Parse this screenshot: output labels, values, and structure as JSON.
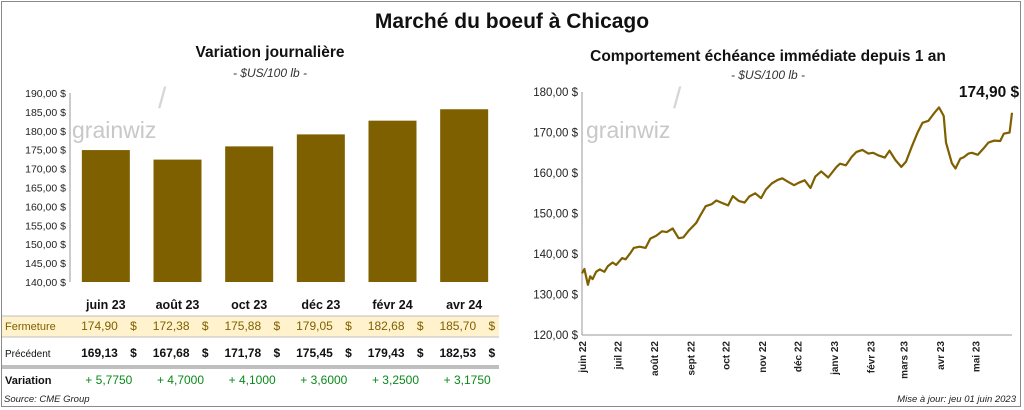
{
  "title": "Marché du boeuf à Chicago",
  "left": {
    "title": "Variation  journalière",
    "unit": "- $US/100 lb -",
    "watermark": "grainwiz",
    "y_ticks": [
      "190,00 $",
      "185,00 $",
      "180,00 $",
      "175,00 $",
      "170,00 $",
      "165,00 $",
      "160,00 $",
      "155,00 $",
      "150,00 $",
      "145,00 $",
      "140,00 $"
    ],
    "bar_color": "#7f6000"
  },
  "right": {
    "title": "Comportement  échéance immédiate depuis 1 an",
    "unit": "- $US/100 lb -",
    "watermark": "grainwiz",
    "last_value_label": "174,90 $",
    "y_ticks": [
      "180,00 $",
      "170,00 $",
      "160,00 $",
      "150,00 $",
      "140,00 $",
      "130,00 $",
      "120,00 $"
    ],
    "x_ticks": [
      "juin 22",
      "juil 22",
      "août 22",
      "sept 22",
      "oct 22",
      "nov 22",
      "déc 22",
      "janv 23",
      "févr 23",
      "mars 23",
      "avr 23",
      "mai 23"
    ],
    "line_color": "#7f6000"
  },
  "table": {
    "rows": [
      {
        "label": "Fermeture",
        "cells": [
          "174,90 $",
          "172,38 $",
          "175,88 $",
          "179,05 $",
          "182,68 $",
          "185,70 $"
        ]
      },
      {
        "label": "Précédent",
        "cells": [
          "169,13 $",
          "167,68 $",
          "171,78 $",
          "175,45 $",
          "179,43 $",
          "182,53 $"
        ]
      },
      {
        "label": "Variation",
        "cells": [
          "+ 5,7750",
          "+ 4,7000",
          "+ 4,1000",
          "+ 3,6000",
          "+ 3,2500",
          "+ 3,1750"
        ]
      }
    ],
    "highlight_color": "#fff2cc",
    "positive_color": "#0a8a1a"
  },
  "source": "Source: CME Group",
  "updated": "Mise à jour: jeu 01 juin 2023",
  "chart_data": [
    {
      "type": "bar",
      "title": "Variation  journalière",
      "categories": [
        "juin 23",
        "août 23",
        "oct 23",
        "déc 23",
        "févr 24",
        "avr 24"
      ],
      "values": [
        174.9,
        172.38,
        175.88,
        179.05,
        182.68,
        185.7
      ],
      "ylim": [
        140,
        190
      ],
      "grid": false
    },
    {
      "type": "line",
      "title": "Comportement  échéance immédiate depuis 1 an",
      "x": [
        "2022-06-01",
        "2022-06-03",
        "2022-06-06",
        "2022-06-08",
        "2022-06-10",
        "2022-06-13",
        "2022-06-16",
        "2022-06-20",
        "2022-06-23",
        "2022-06-27",
        "2022-06-30",
        "2022-07-05",
        "2022-07-08",
        "2022-07-12",
        "2022-07-15",
        "2022-07-20",
        "2022-07-25",
        "2022-07-29",
        "2022-08-03",
        "2022-08-08",
        "2022-08-12",
        "2022-08-17",
        "2022-08-22",
        "2022-08-26",
        "2022-08-31",
        "2022-09-06",
        "2022-09-09",
        "2022-09-14",
        "2022-09-19",
        "2022-09-23",
        "2022-09-28",
        "2022-10-03",
        "2022-10-07",
        "2022-10-12",
        "2022-10-17",
        "2022-10-21",
        "2022-10-26",
        "2022-10-31",
        "2022-11-04",
        "2022-11-09",
        "2022-11-14",
        "2022-11-18",
        "2022-11-23",
        "2022-11-28",
        "2022-12-02",
        "2022-12-07",
        "2022-12-12",
        "2022-12-16",
        "2022-12-21",
        "2022-12-27",
        "2023-01-03",
        "2023-01-06",
        "2023-01-11",
        "2023-01-16",
        "2023-01-20",
        "2023-01-25",
        "2023-01-30",
        "2023-02-03",
        "2023-02-08",
        "2023-02-13",
        "2023-02-17",
        "2023-02-22",
        "2023-02-27",
        "2023-03-03",
        "2023-03-08",
        "2023-03-13",
        "2023-03-17",
        "2023-03-22",
        "2023-03-27",
        "2023-03-31",
        "2023-04-04",
        "2023-04-06",
        "2023-04-11",
        "2023-04-14",
        "2023-04-18",
        "2023-04-21",
        "2023-04-25",
        "2023-04-28",
        "2023-05-03",
        "2023-05-08",
        "2023-05-12",
        "2023-05-17",
        "2023-05-22",
        "2023-05-25",
        "2023-05-30",
        "2023-06-01"
      ],
      "y": [
        135.2,
        136.3,
        132.4,
        134.5,
        133.8,
        135.6,
        136.2,
        135.6,
        137.0,
        137.9,
        137.3,
        139.0,
        138.7,
        140.2,
        141.5,
        141.8,
        141.5,
        143.8,
        144.5,
        145.6,
        145.4,
        146.3,
        143.9,
        144.1,
        145.9,
        147.7,
        149.3,
        151.8,
        152.3,
        153.2,
        152.6,
        152.0,
        154.3,
        153.1,
        152.7,
        154.2,
        155.0,
        153.8,
        155.9,
        157.4,
        158.3,
        158.7,
        157.8,
        157.0,
        157.6,
        158.2,
        156.3,
        159.1,
        160.4,
        158.9,
        161.5,
        162.3,
        161.9,
        164.0,
        165.2,
        165.7,
        164.8,
        165.0,
        164.3,
        163.8,
        165.5,
        163.2,
        161.5,
        162.8,
        166.6,
        170.1,
        172.4,
        172.9,
        174.8,
        176.2,
        174.1,
        167.5,
        162.4,
        161.1,
        163.5,
        163.9,
        164.8,
        165.0,
        164.5,
        166.1,
        167.5,
        168.0,
        167.9,
        169.7,
        170.0,
        174.9
      ],
      "ylim": [
        120,
        180
      ],
      "grid": false
    }
  ]
}
